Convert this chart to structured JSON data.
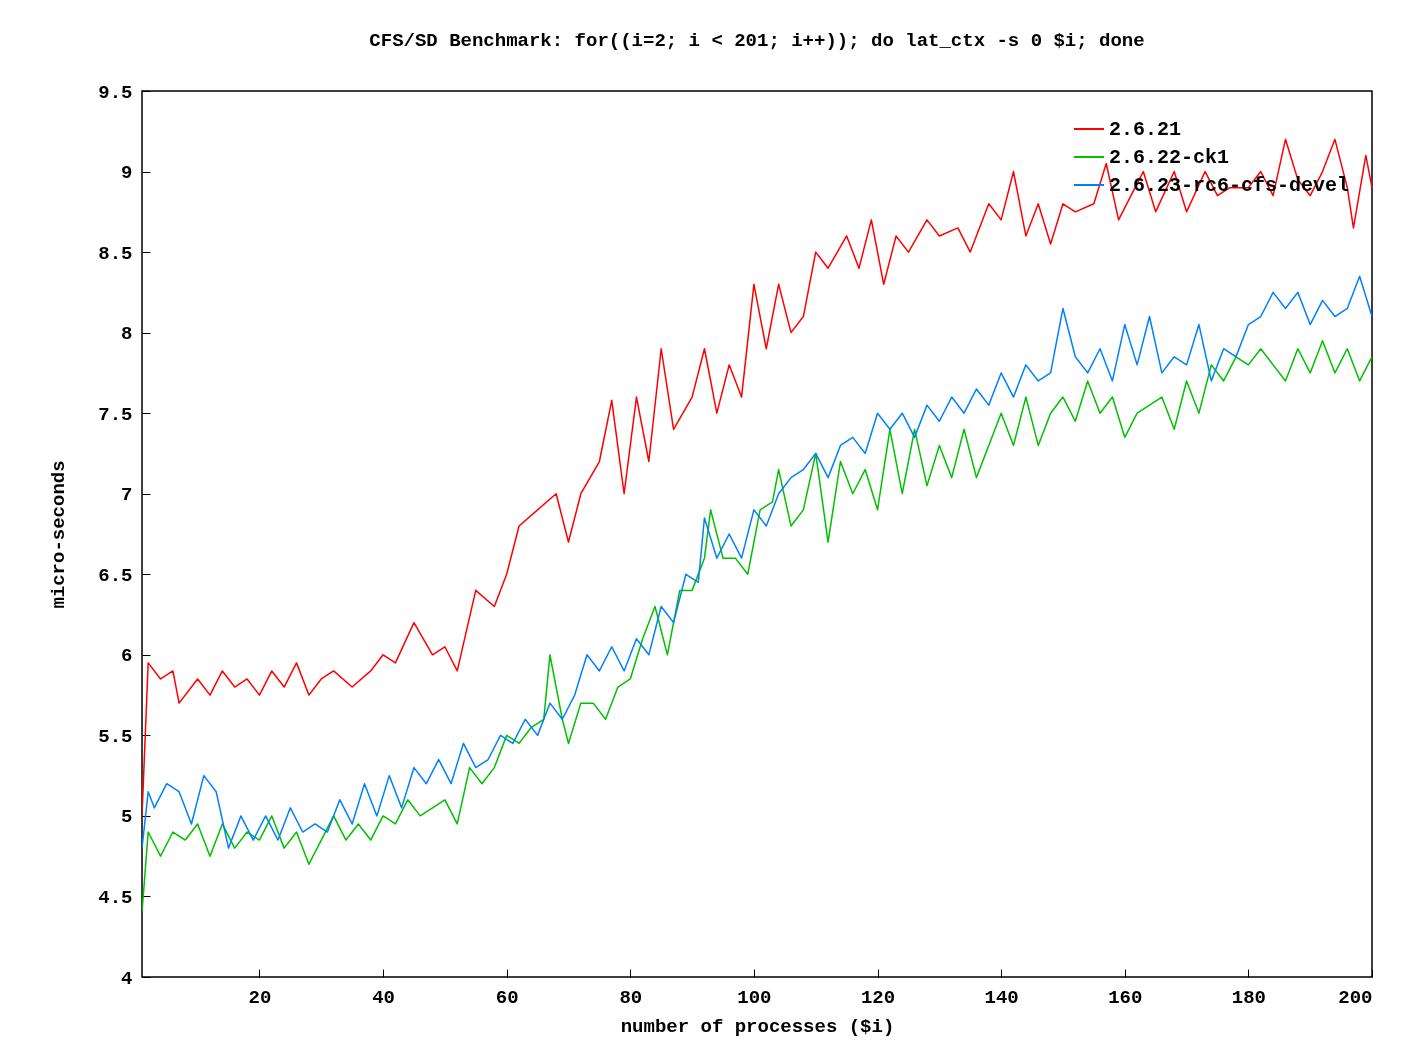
{
  "chart_data": {
    "type": "line",
    "title": "CFS/SD Benchmark: for((i=2; i < 201; i++)); do lat_ctx -s 0 $i; done",
    "xlabel": "number of processes ($i)",
    "ylabel": "micro-seconds",
    "xlim": [
      1,
      200
    ],
    "xticks": [
      20,
      40,
      60,
      80,
      100,
      120,
      140,
      160,
      180,
      200
    ],
    "ylim": [
      4,
      9.5
    ],
    "yticks": [
      4,
      4.5,
      5,
      5.5,
      6,
      6.5,
      7,
      7.5,
      8,
      8.5,
      9,
      9.5
    ],
    "grid": false,
    "legend": "top right",
    "line_style": "solid",
    "marker": "none",
    "series": [
      {
        "name": "2.6.21",
        "color": "#ff0000",
        "x": [
          1,
          2,
          4,
          6,
          7,
          10,
          12,
          14,
          16,
          18,
          20,
          22,
          24,
          26,
          28,
          30,
          32,
          35,
          38,
          40,
          42,
          45,
          48,
          50,
          52,
          55,
          58,
          60,
          62,
          65,
          68,
          70,
          72,
          75,
          77,
          79,
          81,
          83,
          85,
          87,
          90,
          92,
          94,
          96,
          98,
          100,
          102,
          104,
          106,
          108,
          110,
          112,
          115,
          117,
          119,
          121,
          123,
          125,
          128,
          130,
          133,
          135,
          138,
          140,
          142,
          144,
          146,
          148,
          150,
          152,
          155,
          157,
          159,
          161,
          163,
          165,
          168,
          170,
          173,
          175,
          177,
          180,
          182,
          184,
          186,
          188,
          190,
          192,
          194,
          196,
          197,
          199,
          200
        ],
        "values": [
          5.0,
          5.95,
          5.85,
          5.9,
          5.7,
          5.85,
          5.75,
          5.9,
          5.8,
          5.85,
          5.75,
          5.9,
          5.8,
          5.95,
          5.75,
          5.85,
          5.9,
          5.8,
          5.9,
          6.0,
          5.95,
          6.2,
          6.0,
          6.05,
          5.9,
          6.4,
          6.3,
          6.5,
          6.8,
          6.9,
          7.0,
          6.7,
          7.0,
          7.2,
          7.58,
          7.0,
          7.6,
          7.2,
          7.9,
          7.4,
          7.6,
          7.9,
          7.5,
          7.8,
          7.6,
          8.3,
          7.9,
          8.3,
          8.0,
          8.1,
          8.5,
          8.4,
          8.6,
          8.4,
          8.7,
          8.3,
          8.6,
          8.5,
          8.7,
          8.6,
          8.65,
          8.5,
          8.8,
          8.7,
          9.0,
          8.6,
          8.8,
          8.55,
          8.8,
          8.75,
          8.8,
          9.05,
          8.7,
          8.85,
          9.0,
          8.75,
          9.0,
          8.75,
          9.0,
          8.85,
          8.9,
          8.9,
          9.0,
          8.85,
          9.2,
          8.95,
          8.85,
          9.0,
          9.2,
          8.9,
          8.65,
          9.1,
          8.9
        ]
      },
      {
        "name": "2.6.22-ck1",
        "color": "#00c000",
        "x": [
          1,
          2,
          4,
          6,
          8,
          10,
          12,
          14,
          16,
          18,
          20,
          22,
          24,
          26,
          28,
          30,
          32,
          34,
          36,
          38,
          40,
          42,
          44,
          46,
          48,
          50,
          52,
          54,
          56,
          58,
          60,
          62,
          64,
          66,
          67,
          69,
          70,
          72,
          74,
          76,
          78,
          80,
          82,
          84,
          86,
          88,
          90,
          92,
          93,
          95,
          97,
          99,
          101,
          103,
          104,
          106,
          108,
          110,
          112,
          114,
          116,
          118,
          120,
          122,
          124,
          126,
          128,
          130,
          132,
          134,
          136,
          138,
          140,
          142,
          144,
          146,
          148,
          150,
          152,
          154,
          156,
          158,
          160,
          162,
          164,
          166,
          168,
          170,
          172,
          174,
          176,
          178,
          180,
          182,
          184,
          186,
          188,
          190,
          192,
          194,
          196,
          198,
          200
        ],
        "values": [
          4.4,
          4.9,
          4.75,
          4.9,
          4.85,
          4.95,
          4.75,
          4.95,
          4.8,
          4.9,
          4.85,
          5.0,
          4.8,
          4.9,
          4.7,
          4.85,
          5.0,
          4.85,
          4.95,
          4.85,
          5.0,
          4.95,
          5.1,
          5.0,
          5.05,
          5.1,
          4.95,
          5.3,
          5.2,
          5.3,
          5.5,
          5.45,
          5.55,
          5.6,
          6.0,
          5.6,
          5.45,
          5.7,
          5.7,
          5.6,
          5.8,
          5.85,
          6.1,
          6.3,
          6.0,
          6.4,
          6.4,
          6.6,
          6.9,
          6.6,
          6.6,
          6.5,
          6.9,
          6.95,
          7.15,
          6.8,
          6.9,
          7.25,
          6.7,
          7.2,
          7.0,
          7.15,
          6.9,
          7.4,
          7.0,
          7.4,
          7.05,
          7.3,
          7.1,
          7.4,
          7.1,
          7.3,
          7.5,
          7.3,
          7.6,
          7.3,
          7.5,
          7.6,
          7.45,
          7.7,
          7.5,
          7.6,
          7.35,
          7.5,
          7.55,
          7.6,
          7.4,
          7.7,
          7.5,
          7.8,
          7.7,
          7.85,
          7.8,
          7.9,
          7.8,
          7.7,
          7.9,
          7.75,
          7.95,
          7.75,
          7.9,
          7.7,
          7.85
        ]
      },
      {
        "name": "2.6.23-rc6-cfs-devel",
        "color": "#0080ff",
        "x": [
          1,
          2,
          3,
          5,
          7,
          9,
          11,
          13,
          15,
          17,
          19,
          21,
          23,
          25,
          27,
          29,
          31,
          33,
          35,
          37,
          39,
          41,
          43,
          45,
          47,
          49,
          51,
          53,
          55,
          57,
          59,
          61,
          63,
          65,
          67,
          69,
          71,
          73,
          75,
          77,
          79,
          81,
          83,
          85,
          87,
          89,
          91,
          92,
          94,
          96,
          98,
          100,
          102,
          104,
          106,
          108,
          110,
          112,
          114,
          116,
          118,
          120,
          122,
          124,
          126,
          128,
          130,
          132,
          134,
          136,
          138,
          140,
          142,
          144,
          146,
          148,
          150,
          152,
          154,
          156,
          158,
          160,
          162,
          164,
          166,
          168,
          170,
          172,
          174,
          176,
          178,
          180,
          182,
          184,
          186,
          188,
          190,
          192,
          194,
          196,
          198,
          200
        ],
        "values": [
          4.8,
          5.15,
          5.05,
          5.2,
          5.15,
          4.95,
          5.25,
          5.15,
          4.8,
          5.0,
          4.85,
          5.0,
          4.85,
          5.05,
          4.9,
          4.95,
          4.9,
          5.1,
          4.95,
          5.2,
          5.0,
          5.25,
          5.05,
          5.3,
          5.2,
          5.35,
          5.2,
          5.45,
          5.3,
          5.35,
          5.5,
          5.45,
          5.6,
          5.5,
          5.7,
          5.6,
          5.75,
          6.0,
          5.9,
          6.05,
          5.9,
          6.1,
          6.0,
          6.3,
          6.2,
          6.5,
          6.45,
          6.85,
          6.6,
          6.75,
          6.6,
          6.9,
          6.8,
          7.0,
          7.1,
          7.15,
          7.25,
          7.1,
          7.3,
          7.35,
          7.25,
          7.5,
          7.4,
          7.5,
          7.35,
          7.55,
          7.45,
          7.6,
          7.5,
          7.65,
          7.55,
          7.75,
          7.6,
          7.8,
          7.7,
          7.75,
          8.15,
          7.85,
          7.75,
          7.9,
          7.7,
          8.05,
          7.8,
          8.1,
          7.75,
          7.85,
          7.8,
          8.05,
          7.7,
          7.9,
          7.85,
          8.05,
          8.1,
          8.25,
          8.15,
          8.25,
          8.05,
          8.2,
          8.1,
          8.15,
          8.35,
          8.1
        ]
      }
    ]
  }
}
